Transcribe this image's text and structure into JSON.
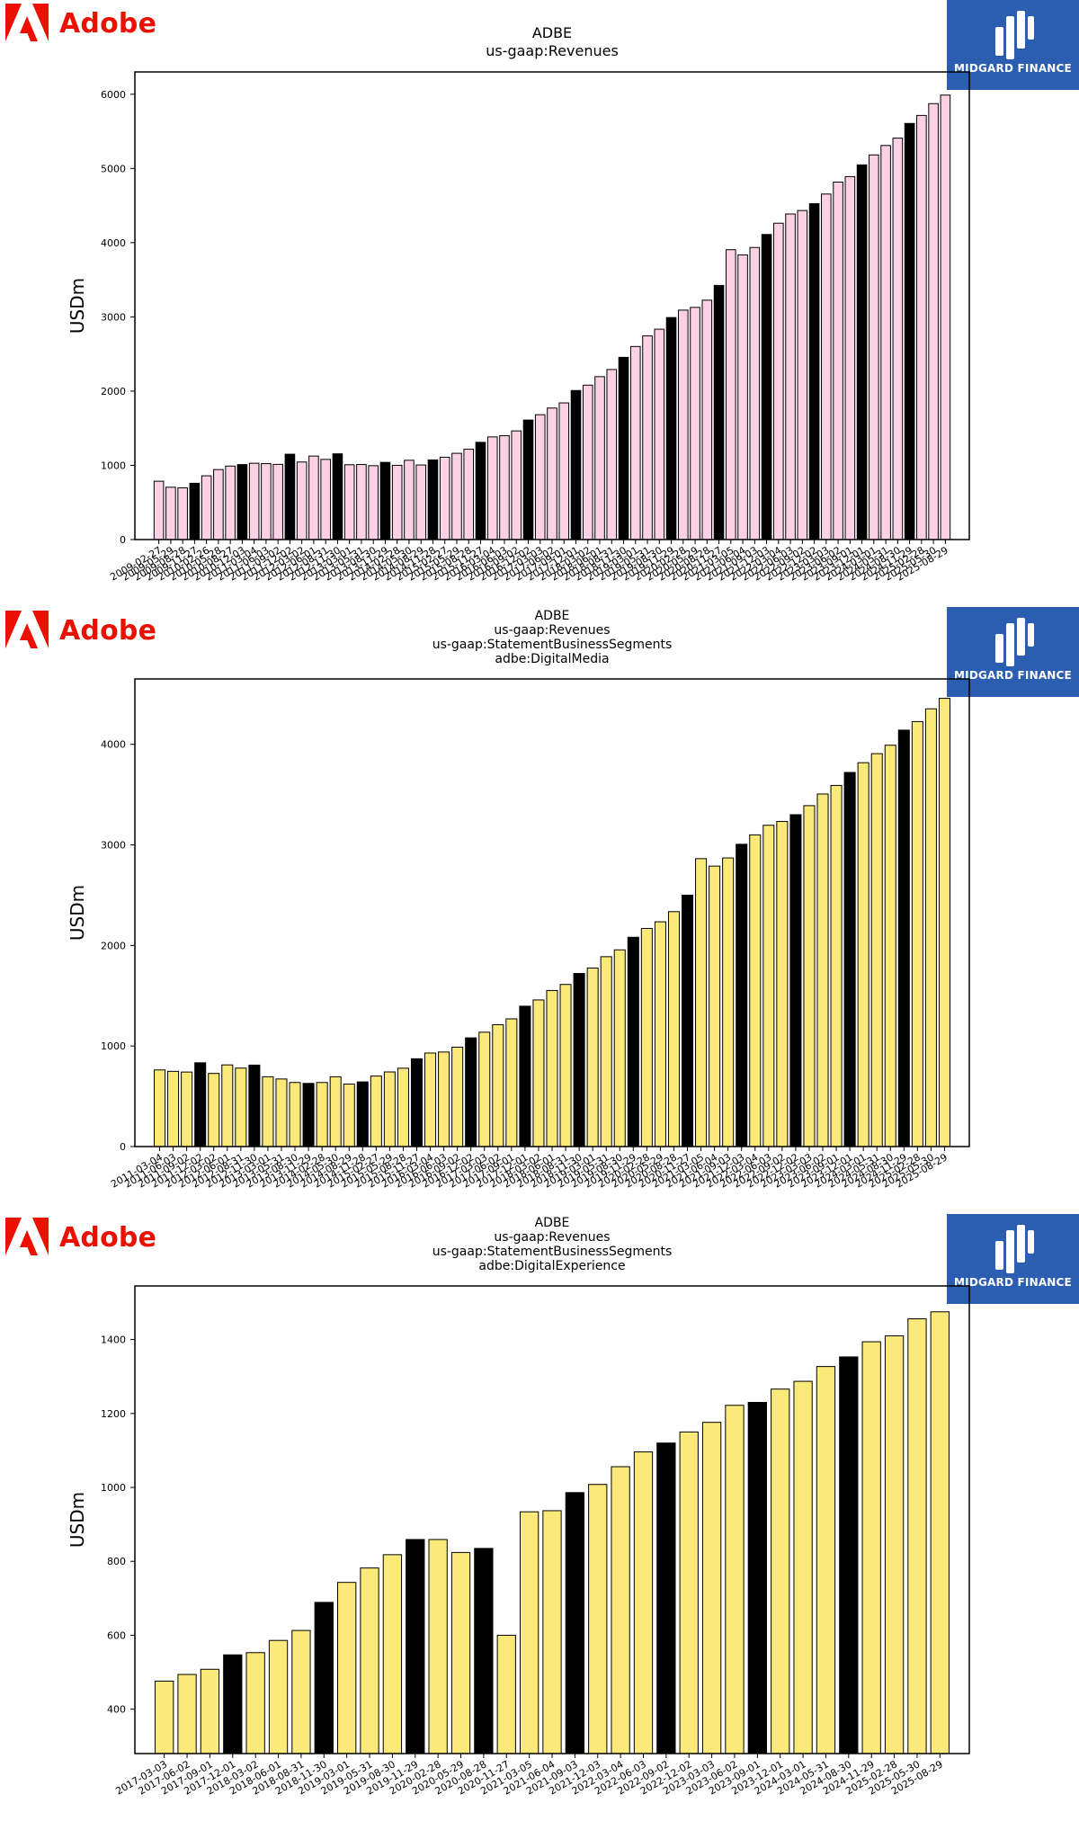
{
  "brand": {
    "company_name": "Adobe",
    "partner_name": "MIDGARD FINANCE",
    "brand_color": "#eb1000",
    "partner_color": "#2b5db0"
  },
  "colors": {
    "highlight": "#000000",
    "edge": "#000000"
  },
  "chart_data": [
    {
      "type": "bar",
      "title": "ADBE\nus-gaap:Revenues",
      "ylabel": "USDm",
      "xlabel": "",
      "ylim": [
        0,
        6300
      ],
      "yticks": [
        0,
        1000,
        2000,
        3000,
        4000,
        5000,
        6000
      ],
      "bar_color": "#fcd1e4",
      "highlight_color": "#000000",
      "categories": [
        "2009-02-27",
        "2009-05-29",
        "2009-08-28",
        "2009-11-27",
        "2010-02-26",
        "2010-05-28",
        "2010-08-27",
        "2010-12-03",
        "2011-03-04",
        "2011-06-03",
        "2011-09-02",
        "2011-12-02",
        "2012-03-02",
        "2012-06-01",
        "2012-08-31",
        "2012-11-30",
        "2013-03-01",
        "2013-05-31",
        "2013-08-30",
        "2013-11-29",
        "2014-02-28",
        "2014-05-30",
        "2014-08-29",
        "2014-11-28",
        "2015-02-27",
        "2015-05-29",
        "2015-08-28",
        "2015-11-27",
        "2016-03-04",
        "2016-06-03",
        "2016-09-02",
        "2016-12-02",
        "2017-03-03",
        "2017-06-02",
        "2017-09-01",
        "2017-12-01",
        "2018-03-02",
        "2018-06-01",
        "2018-08-31",
        "2018-11-30",
        "2019-03-01",
        "2019-05-31",
        "2019-08-30",
        "2019-11-29",
        "2020-02-28",
        "2020-05-29",
        "2020-08-28",
        "2020-11-27",
        "2021-03-05",
        "2021-06-04",
        "2021-09-03",
        "2021-12-03",
        "2022-03-04",
        "2022-06-03",
        "2022-09-02",
        "2022-12-02",
        "2023-03-03",
        "2023-06-02",
        "2023-09-01",
        "2023-12-01",
        "2024-03-01",
        "2024-05-31",
        "2024-08-30",
        "2024-11-29",
        "2025-02-28",
        "2025-05-30",
        "2025-08-29"
      ],
      "values": [
        786,
        705,
        697,
        758,
        859,
        943,
        990,
        1010,
        1028,
        1023,
        1013,
        1150,
        1045,
        1125,
        1080,
        1155,
        1008,
        1011,
        995,
        1040,
        1000,
        1068,
        1005,
        1073,
        1109,
        1162,
        1217,
        1310,
        1383,
        1399,
        1464,
        1610,
        1682,
        1772,
        1841,
        2008,
        2080,
        2195,
        2291,
        2455,
        2601,
        2744,
        2834,
        2991,
        3091,
        3128,
        3225,
        3424,
        3905,
        3835,
        3935,
        4110,
        4262,
        4386,
        4433,
        4525,
        4655,
        4816,
        4890,
        5048,
        5182,
        5309,
        5408,
        5606,
        5714,
        5873,
        5988
      ],
      "highlight": [
        3,
        7,
        11,
        15,
        19,
        23,
        27,
        31,
        35,
        39,
        43,
        47,
        51,
        55,
        59,
        63
      ]
    },
    {
      "type": "bar",
      "title": "ADBE\nus-gaap:Revenues\nus-gaap:StatementBusinessSegments\nadbe:DigitalMedia",
      "ylabel": "USDm",
      "xlabel": "",
      "ylim": [
        0,
        4650
      ],
      "yticks": [
        0,
        1000,
        2000,
        3000,
        4000
      ],
      "bar_color": "#fbe97a",
      "highlight_color": "#000000",
      "categories": [
        "2011-03-04",
        "2011-06-03",
        "2011-09-02",
        "2011-12-02",
        "2012-03-02",
        "2012-06-01",
        "2012-08-31",
        "2012-11-30",
        "2013-03-01",
        "2013-05-31",
        "2013-08-30",
        "2013-11-29",
        "2014-02-28",
        "2014-05-30",
        "2014-08-29",
        "2014-11-28",
        "2015-02-27",
        "2015-05-29",
        "2015-08-28",
        "2015-11-27",
        "2016-03-04",
        "2016-06-03",
        "2016-09-02",
        "2016-12-02",
        "2017-03-03",
        "2017-06-02",
        "2017-09-01",
        "2017-12-01",
        "2018-03-02",
        "2018-06-01",
        "2018-08-31",
        "2018-11-30",
        "2019-03-01",
        "2019-05-31",
        "2019-08-30",
        "2019-11-29",
        "2020-02-28",
        "2020-05-29",
        "2020-08-28",
        "2020-11-27",
        "2021-03-05",
        "2021-06-04",
        "2021-09-03",
        "2021-12-03",
        "2022-03-04",
        "2022-06-03",
        "2022-09-02",
        "2022-12-02",
        "2023-03-03",
        "2023-06-02",
        "2023-09-01",
        "2023-12-01",
        "2024-03-01",
        "2024-05-31",
        "2024-08-30",
        "2024-11-29",
        "2025-02-28",
        "2025-05-30",
        "2025-08-29"
      ],
      "values": [
        762,
        748,
        741,
        833,
        727,
        812,
        780,
        810,
        694,
        672,
        637,
        628,
        637,
        694,
        621,
        643,
        701,
        742,
        779,
        873,
        930,
        940,
        988,
        1081,
        1137,
        1212,
        1270,
        1396,
        1458,
        1552,
        1612,
        1721,
        1775,
        1888,
        1956,
        2081,
        2169,
        2235,
        2336,
        2500,
        2863,
        2789,
        2870,
        3006,
        3099,
        3195,
        3233,
        3300,
        3390,
        3506,
        3591,
        3720,
        3817,
        3907,
        3991,
        4141,
        4226,
        4353,
        4457
      ],
      "highlight": [
        3,
        7,
        11,
        15,
        19,
        23,
        27,
        31,
        35,
        39,
        43,
        47,
        51,
        55
      ]
    },
    {
      "type": "bar",
      "title": "ADBE\nus-gaap:Revenues\nus-gaap:StatementBusinessSegments\nadbe:DigitalExperience",
      "ylabel": "USDm",
      "xlabel": "",
      "ylim": [
        280,
        1545
      ],
      "yticks": [
        400,
        600,
        800,
        1000,
        1200,
        1400
      ],
      "bar_color": "#fbe97a",
      "highlight_color": "#000000",
      "categories": [
        "2017-03-03",
        "2017-06-02",
        "2017-09-01",
        "2017-12-01",
        "2018-03-02",
        "2018-06-01",
        "2018-08-31",
        "2018-11-30",
        "2019-03-01",
        "2019-05-31",
        "2019-08-30",
        "2019-11-29",
        "2020-02-28",
        "2020-05-29",
        "2020-08-28",
        "2020-11-27",
        "2021-03-05",
        "2021-06-04",
        "2021-09-03",
        "2021-12-03",
        "2022-03-04",
        "2022-06-03",
        "2022-09-02",
        "2022-12-02",
        "2023-03-03",
        "2023-06-02",
        "2023-09-01",
        "2023-12-01",
        "2024-03-01",
        "2024-05-31",
        "2024-08-30",
        "2024-11-29",
        "2025-02-28",
        "2025-05-30",
        "2025-08-29"
      ],
      "values": [
        476,
        494,
        508,
        547,
        553,
        586,
        613,
        689,
        743,
        782,
        818,
        859,
        859,
        824,
        835,
        600,
        934,
        937,
        986,
        1008,
        1056,
        1096,
        1120,
        1150,
        1176,
        1222,
        1230,
        1266,
        1287,
        1327,
        1353,
        1394,
        1410,
        1456,
        1475
      ],
      "highlight": [
        3,
        7,
        11,
        14,
        18,
        22,
        26,
        30
      ]
    }
  ]
}
